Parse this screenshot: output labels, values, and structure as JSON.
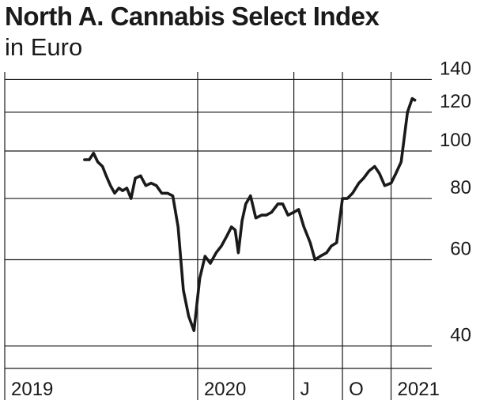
{
  "chart_data": {
    "type": "line",
    "title": "North A. Cannabis Select Index",
    "subtitle": "in Euro",
    "xlabel": "",
    "ylabel": "",
    "y_scale": "log",
    "ylim": [
      36,
      145
    ],
    "y_ticks": [
      40,
      60,
      80,
      100,
      120,
      140
    ],
    "x_ticks": [
      "2019",
      "2020",
      "J",
      "O",
      "2021"
    ],
    "grid": true,
    "series": [
      {
        "name": "",
        "color": "#1a1a1a",
        "x": [
          "2019-06-01",
          "2019-06-10",
          "2019-06-18",
          "2019-06-26",
          "2019-07-05",
          "2019-07-12",
          "2019-07-20",
          "2019-07-28",
          "2019-08-05",
          "2019-08-12",
          "2019-08-20",
          "2019-08-28",
          "2019-09-05",
          "2019-09-15",
          "2019-09-25",
          "2019-10-05",
          "2019-10-15",
          "2019-10-25",
          "2019-11-05",
          "2019-11-15",
          "2019-11-25",
          "2019-12-05",
          "2019-12-15",
          "2019-12-25",
          "2020-01-05",
          "2020-01-15",
          "2020-01-25",
          "2020-02-05",
          "2020-02-15",
          "2020-02-25",
          "2020-03-05",
          "2020-03-12",
          "2020-03-18",
          "2020-03-25",
          "2020-04-01",
          "2020-04-10",
          "2020-04-20",
          "2020-05-01",
          "2020-05-10",
          "2020-05-20",
          "2020-06-01",
          "2020-06-10",
          "2020-06-20",
          "2020-07-01",
          "2020-07-10",
          "2020-07-20",
          "2020-08-01",
          "2020-08-10",
          "2020-08-20",
          "2020-09-01",
          "2020-09-10",
          "2020-09-20",
          "2020-10-01",
          "2020-10-10",
          "2020-10-20",
          "2020-11-01",
          "2020-11-10",
          "2020-11-20",
          "2020-12-01",
          "2020-12-10",
          "2020-12-20",
          "2021-01-01",
          "2021-01-10",
          "2021-01-20",
          "2021-02-01",
          "2021-02-10",
          "2021-02-15"
        ],
        "values": [
          96,
          96,
          99,
          95,
          93,
          89,
          85,
          82,
          84,
          83,
          84,
          80,
          88,
          89,
          85,
          86,
          85,
          82,
          82,
          81,
          70,
          52,
          46,
          43,
          55,
          61,
          59,
          62,
          64,
          67,
          70,
          69,
          62,
          72,
          78,
          81,
          73,
          74,
          74,
          75,
          78,
          78,
          74,
          75,
          76,
          70,
          65,
          60,
          61,
          62,
          64,
          65,
          80,
          80,
          82,
          86,
          88,
          91,
          93,
          90,
          85,
          86,
          90,
          95,
          120,
          128,
          127
        ]
      }
    ]
  }
}
